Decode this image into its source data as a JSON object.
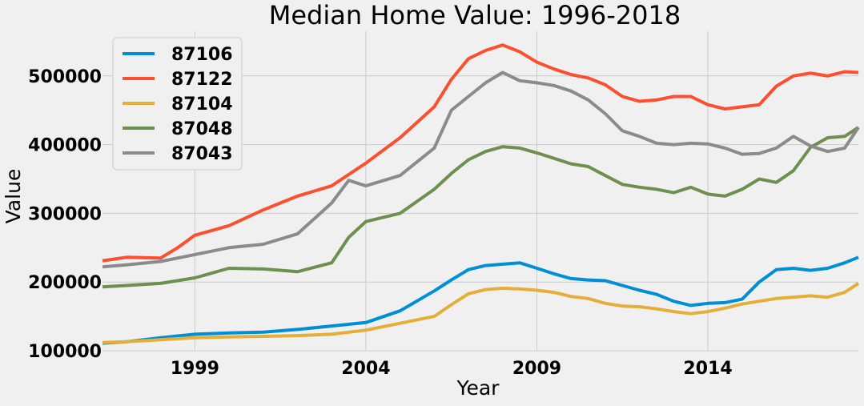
{
  "chart_data": {
    "type": "line",
    "title": "Median Home Value: 1996-2018",
    "xlabel": "Year",
    "ylabel": "Value",
    "xlim": [
      1996.3,
      2018.4
    ],
    "ylim": [
      100000,
      565000
    ],
    "xticks": [
      1999,
      2004,
      2009,
      2014
    ],
    "xtick_labels": [
      "1999",
      "2004",
      "2009",
      "2014"
    ],
    "yticks": [
      100000,
      200000,
      300000,
      400000,
      500000
    ],
    "ytick_labels": [
      "100000",
      "200000",
      "300000",
      "400000",
      "500000"
    ],
    "grid": true,
    "legend_position": "top-left",
    "series": [
      {
        "name": "87106",
        "color": "#008fd5",
        "x": [
          1996.3,
          1997.0,
          1998.0,
          1999.0,
          2000.0,
          2001.0,
          2002.0,
          2003.0,
          2004.0,
          2005.0,
          2006.0,
          2006.5,
          2007.0,
          2007.5,
          2008.0,
          2008.5,
          2009.0,
          2009.5,
          2010.0,
          2010.5,
          2011.0,
          2011.5,
          2012.0,
          2012.5,
          2013.0,
          2013.5,
          2014.0,
          2014.5,
          2015.0,
          2015.5,
          2016.0,
          2016.5,
          2017.0,
          2017.5,
          2018.0,
          2018.4
        ],
        "y": [
          111000,
          113000,
          119000,
          124000,
          126000,
          127000,
          131000,
          136000,
          141000,
          158000,
          187000,
          203000,
          218000,
          224000,
          226000,
          228000,
          220000,
          212000,
          205000,
          203000,
          202000,
          195000,
          188000,
          182000,
          172000,
          166000,
          169000,
          170000,
          175000,
          200000,
          218000,
          220000,
          217000,
          220000,
          228000,
          236000
        ]
      },
      {
        "name": "87122",
        "color": "#fc4f30",
        "x": [
          1996.3,
          1997.0,
          1998.0,
          1998.5,
          1999.0,
          2000.0,
          2001.0,
          2002.0,
          2003.0,
          2004.0,
          2005.0,
          2006.0,
          2006.5,
          2007.0,
          2007.5,
          2008.0,
          2008.5,
          2009.0,
          2009.5,
          2010.0,
          2010.5,
          2011.0,
          2011.5,
          2012.0,
          2012.5,
          2013.0,
          2013.5,
          2014.0,
          2014.5,
          2015.0,
          2015.5,
          2016.0,
          2016.5,
          2017.0,
          2017.5,
          2018.0,
          2018.4
        ],
        "y": [
          231000,
          236000,
          235000,
          250000,
          268000,
          282000,
          305000,
          325000,
          340000,
          373000,
          410000,
          455000,
          495000,
          525000,
          537000,
          545000,
          535000,
          520000,
          510000,
          502000,
          497000,
          487000,
          470000,
          463000,
          465000,
          470000,
          470000,
          458000,
          452000,
          455000,
          458000,
          485000,
          500000,
          504000,
          500000,
          506000,
          505000
        ]
      },
      {
        "name": "87104",
        "color": "#e5ae38",
        "x": [
          1996.3,
          1997.0,
          1998.0,
          1999.0,
          2000.0,
          2001.0,
          2002.0,
          2003.0,
          2004.0,
          2005.0,
          2006.0,
          2006.5,
          2007.0,
          2007.5,
          2008.0,
          2008.5,
          2009.0,
          2009.5,
          2010.0,
          2010.5,
          2011.0,
          2011.5,
          2012.0,
          2012.5,
          2013.0,
          2013.5,
          2014.0,
          2014.5,
          2015.0,
          2015.5,
          2016.0,
          2016.5,
          2017.0,
          2017.5,
          2018.0,
          2018.4
        ],
        "y": [
          112000,
          113000,
          116000,
          119000,
          120000,
          121000,
          122000,
          124000,
          130000,
          140000,
          150000,
          167000,
          183000,
          189000,
          191000,
          190000,
          188000,
          185000,
          179000,
          176000,
          169000,
          165000,
          164000,
          161000,
          157000,
          154000,
          157000,
          162000,
          168000,
          172000,
          176000,
          178000,
          180000,
          178000,
          185000,
          198000
        ]
      },
      {
        "name": "87048",
        "color": "#6d904f",
        "x": [
          1996.3,
          1997.0,
          1998.0,
          1999.0,
          2000.0,
          2001.0,
          2002.0,
          2003.0,
          2003.5,
          2004.0,
          2005.0,
          2006.0,
          2006.5,
          2007.0,
          2007.5,
          2008.0,
          2008.5,
          2009.0,
          2009.5,
          2010.0,
          2010.5,
          2011.0,
          2011.5,
          2012.0,
          2012.5,
          2013.0,
          2013.5,
          2014.0,
          2014.5,
          2015.0,
          2015.5,
          2016.0,
          2016.5,
          2017.0,
          2017.5,
          2018.0,
          2018.4
        ],
        "y": [
          193000,
          195000,
          198000,
          206000,
          220000,
          219000,
          215000,
          228000,
          265000,
          288000,
          300000,
          335000,
          358000,
          378000,
          390000,
          397000,
          395000,
          388000,
          380000,
          372000,
          368000,
          355000,
          342000,
          338000,
          335000,
          330000,
          338000,
          328000,
          325000,
          335000,
          350000,
          345000,
          362000,
          396000,
          410000,
          412000,
          425000
        ]
      },
      {
        "name": "87043",
        "color": "#8b8b8b",
        "x": [
          1996.3,
          1997.0,
          1998.0,
          1999.0,
          2000.0,
          2001.0,
          2002.0,
          2003.0,
          2003.5,
          2004.0,
          2005.0,
          2006.0,
          2006.5,
          2007.0,
          2007.5,
          2008.0,
          2008.5,
          2009.0,
          2009.5,
          2010.0,
          2010.5,
          2011.0,
          2011.5,
          2012.0,
          2012.5,
          2013.0,
          2013.5,
          2014.0,
          2014.5,
          2015.0,
          2015.5,
          2016.0,
          2016.5,
          2017.0,
          2017.5,
          2018.0,
          2018.4
        ],
        "y": [
          222000,
          225000,
          230000,
          240000,
          250000,
          255000,
          270000,
          315000,
          348000,
          340000,
          355000,
          395000,
          450000,
          470000,
          490000,
          505000,
          493000,
          490000,
          486000,
          478000,
          465000,
          445000,
          420000,
          412000,
          402000,
          400000,
          402000,
          401000,
          395000,
          386000,
          387000,
          395000,
          412000,
          398000,
          390000,
          395000,
          425000
        ]
      }
    ]
  }
}
